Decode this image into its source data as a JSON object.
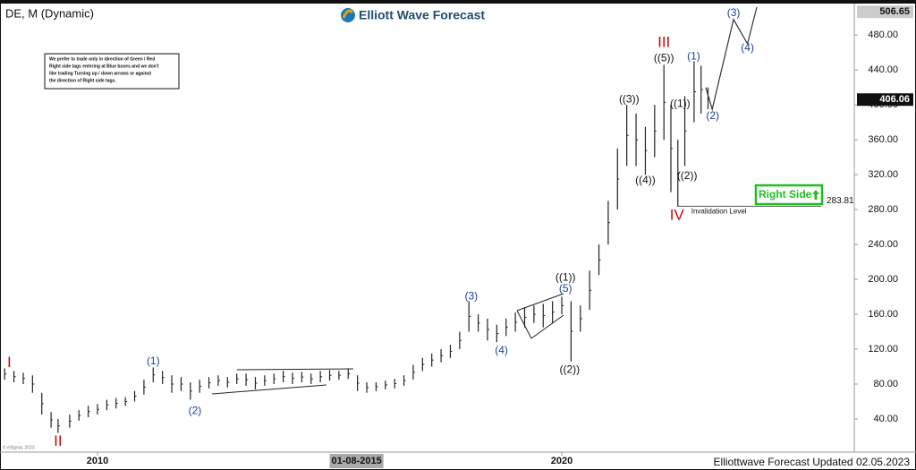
{
  "chart_data": {
    "type": "ohlc",
    "title": "DE, M (Dynamic)",
    "brand": "Elliott Wave Forecast",
    "note_lines": [
      "We prefer to trade only in direction of Green / Red",
      "Right side tags entering at Blue boxes and we don't",
      "like trading Turning up / down arrows or against",
      "the direction of Right side tags."
    ],
    "right_side_tag": "Right Side",
    "invalidation": {
      "value": 283.81,
      "label": "Invalidation Level",
      "x_start": 2022.48
    },
    "last_high": 506.65,
    "last_price": 406.06,
    "cursor": {
      "value": 2015.58,
      "label": "01-08-2015"
    },
    "footer": "Elliottwave Forecast Updated 02.05.2023",
    "copyright": "© eSignal, 2023",
    "xlim": [
      2007.9,
      2026.3
    ],
    "xticks": [
      2010,
      2020
    ],
    "ylim": [
      2,
      512
    ],
    "yticks": [
      {
        "value": 40,
        "label": "40.00"
      },
      {
        "value": 80,
        "label": "80.00"
      },
      {
        "value": 120,
        "label": "120.00"
      },
      {
        "value": 160,
        "label": "160.00"
      },
      {
        "value": 200,
        "label": "200.00"
      },
      {
        "value": 240,
        "label": "240.00"
      },
      {
        "value": 280,
        "label": "280.00"
      },
      {
        "value": 320,
        "label": "320.00"
      },
      {
        "value": 360,
        "label": "360.00"
      },
      {
        "value": 400,
        "label": "400.00"
      },
      {
        "value": 440,
        "label": "440.00"
      },
      {
        "value": 480,
        "label": "480.00"
      }
    ],
    "bar_color": "#222222",
    "bars": {
      "x": [
        2008.0,
        2008.2,
        2008.4,
        2008.6,
        2008.8,
        2009.0,
        2009.15,
        2009.4,
        2009.6,
        2009.8,
        2010.0,
        2010.2,
        2010.4,
        2010.6,
        2010.8,
        2011.0,
        2011.2,
        2011.4,
        2011.6,
        2011.8,
        2012.0,
        2012.2,
        2012.4,
        2012.6,
        2012.8,
        2013.0,
        2013.2,
        2013.4,
        2013.6,
        2013.8,
        2014.0,
        2014.2,
        2014.4,
        2014.6,
        2014.8,
        2015.0,
        2015.2,
        2015.4,
        2015.6,
        2015.8,
        2016.0,
        2016.2,
        2016.4,
        2016.6,
        2016.8,
        2017.0,
        2017.2,
        2017.4,
        2017.6,
        2017.8,
        2018.0,
        2018.2,
        2018.4,
        2018.6,
        2018.8,
        2019.0,
        2019.2,
        2019.4,
        2019.6,
        2019.8,
        2020.0,
        2020.2,
        2020.4,
        2020.6,
        2020.8,
        2021.0,
        2021.2,
        2021.4,
        2021.6,
        2021.8,
        2022.0,
        2022.2,
        2022.35,
        2022.5,
        2022.65,
        2022.85,
        2023.0,
        2023.15
      ],
      "high": [
        98,
        95,
        93,
        90,
        70,
        48,
        40,
        45,
        50,
        55,
        57,
        62,
        64,
        65,
        72,
        85,
        99,
        95,
        90,
        88,
        82,
        85,
        88,
        90,
        88,
        92,
        92,
        88,
        90,
        92,
        95,
        93,
        94,
        92,
        95,
        96,
        95,
        98,
        90,
        82,
        82,
        84,
        86,
        90,
        102,
        110,
        115,
        120,
        125,
        140,
        175,
        160,
        155,
        148,
        155,
        162,
        168,
        170,
        172,
        175,
        180,
        175,
        170,
        210,
        240,
        290,
        350,
        400,
        390,
        375,
        400,
        446,
        400,
        360,
        410,
        450,
        445,
        420
      ],
      "low": [
        85,
        82,
        80,
        70,
        45,
        30,
        24,
        30,
        38,
        42,
        45,
        50,
        52,
        55,
        60,
        68,
        82,
        80,
        70,
        72,
        62,
        70,
        75,
        78,
        76,
        80,
        78,
        74,
        78,
        80,
        82,
        80,
        82,
        80,
        82,
        84,
        85,
        86,
        72,
        70,
        72,
        74,
        75,
        78,
        85,
        95,
        100,
        105,
        110,
        120,
        140,
        140,
        130,
        128,
        135,
        140,
        145,
        150,
        145,
        150,
        160,
        106,
        140,
        165,
        205,
        240,
        280,
        330,
        330,
        320,
        340,
        360,
        300,
        284,
        330,
        380,
        390,
        395
      ]
    },
    "projection": {
      "color": "#1a3fa0",
      "x": [
        2023.1,
        2023.24,
        2023.7,
        2024.0,
        2024.2
      ],
      "values": [
        420,
        395,
        498,
        470,
        512
      ]
    },
    "annotations": [
      {
        "text": "I",
        "x": 2008.1,
        "y": 104,
        "color": "#d40000"
      },
      {
        "text": "II",
        "x": 2009.15,
        "y": 14,
        "color": "#d40000"
      },
      {
        "text": "(1)",
        "x": 2011.2,
        "y": 106,
        "color": "#1a3fa0"
      },
      {
        "text": "(2)",
        "x": 2012.1,
        "y": 49,
        "color": "#1a3fa0"
      },
      {
        "text": "(3)",
        "x": 2018.05,
        "y": 180,
        "color": "#1a3fa0"
      },
      {
        "text": "(4)",
        "x": 2018.7,
        "y": 118,
        "color": "#1a3fa0"
      },
      {
        "text": "(5)",
        "x": 2020.08,
        "y": 189,
        "color": "#1a3fa0"
      },
      {
        "text": "((1))",
        "x": 2020.08,
        "y": 202,
        "color": "#111111"
      },
      {
        "text": "((2))",
        "x": 2020.17,
        "y": 96,
        "color": "#111111"
      },
      {
        "text": "((3))",
        "x": 2021.45,
        "y": 406,
        "color": "#111111"
      },
      {
        "text": "((4))",
        "x": 2021.8,
        "y": 313,
        "color": "#111111"
      },
      {
        "text": "((5))",
        "x": 2022.2,
        "y": 453,
        "color": "#111111"
      },
      {
        "text": "III",
        "x": 2022.2,
        "y": 471,
        "color": "#d40000"
      },
      {
        "text": "IV",
        "x": 2022.48,
        "y": 273,
        "color": "#d40000"
      },
      {
        "text": "((1))",
        "x": 2022.55,
        "y": 401,
        "color": "#111111"
      },
      {
        "text": "((2))",
        "x": 2022.7,
        "y": 318,
        "color": "#111111"
      },
      {
        "text": "(1)",
        "x": 2022.84,
        "y": 455,
        "color": "#1a3fa0"
      },
      {
        "text": "(2)",
        "x": 2023.25,
        "y": 387,
        "color": "#1a3fa0"
      },
      {
        "text": "(3)",
        "x": 2023.7,
        "y": 505,
        "color": "#1a3fa0"
      },
      {
        "text": "(4)",
        "x": 2024.0,
        "y": 465,
        "color": "#1a3fa0"
      }
    ]
  }
}
